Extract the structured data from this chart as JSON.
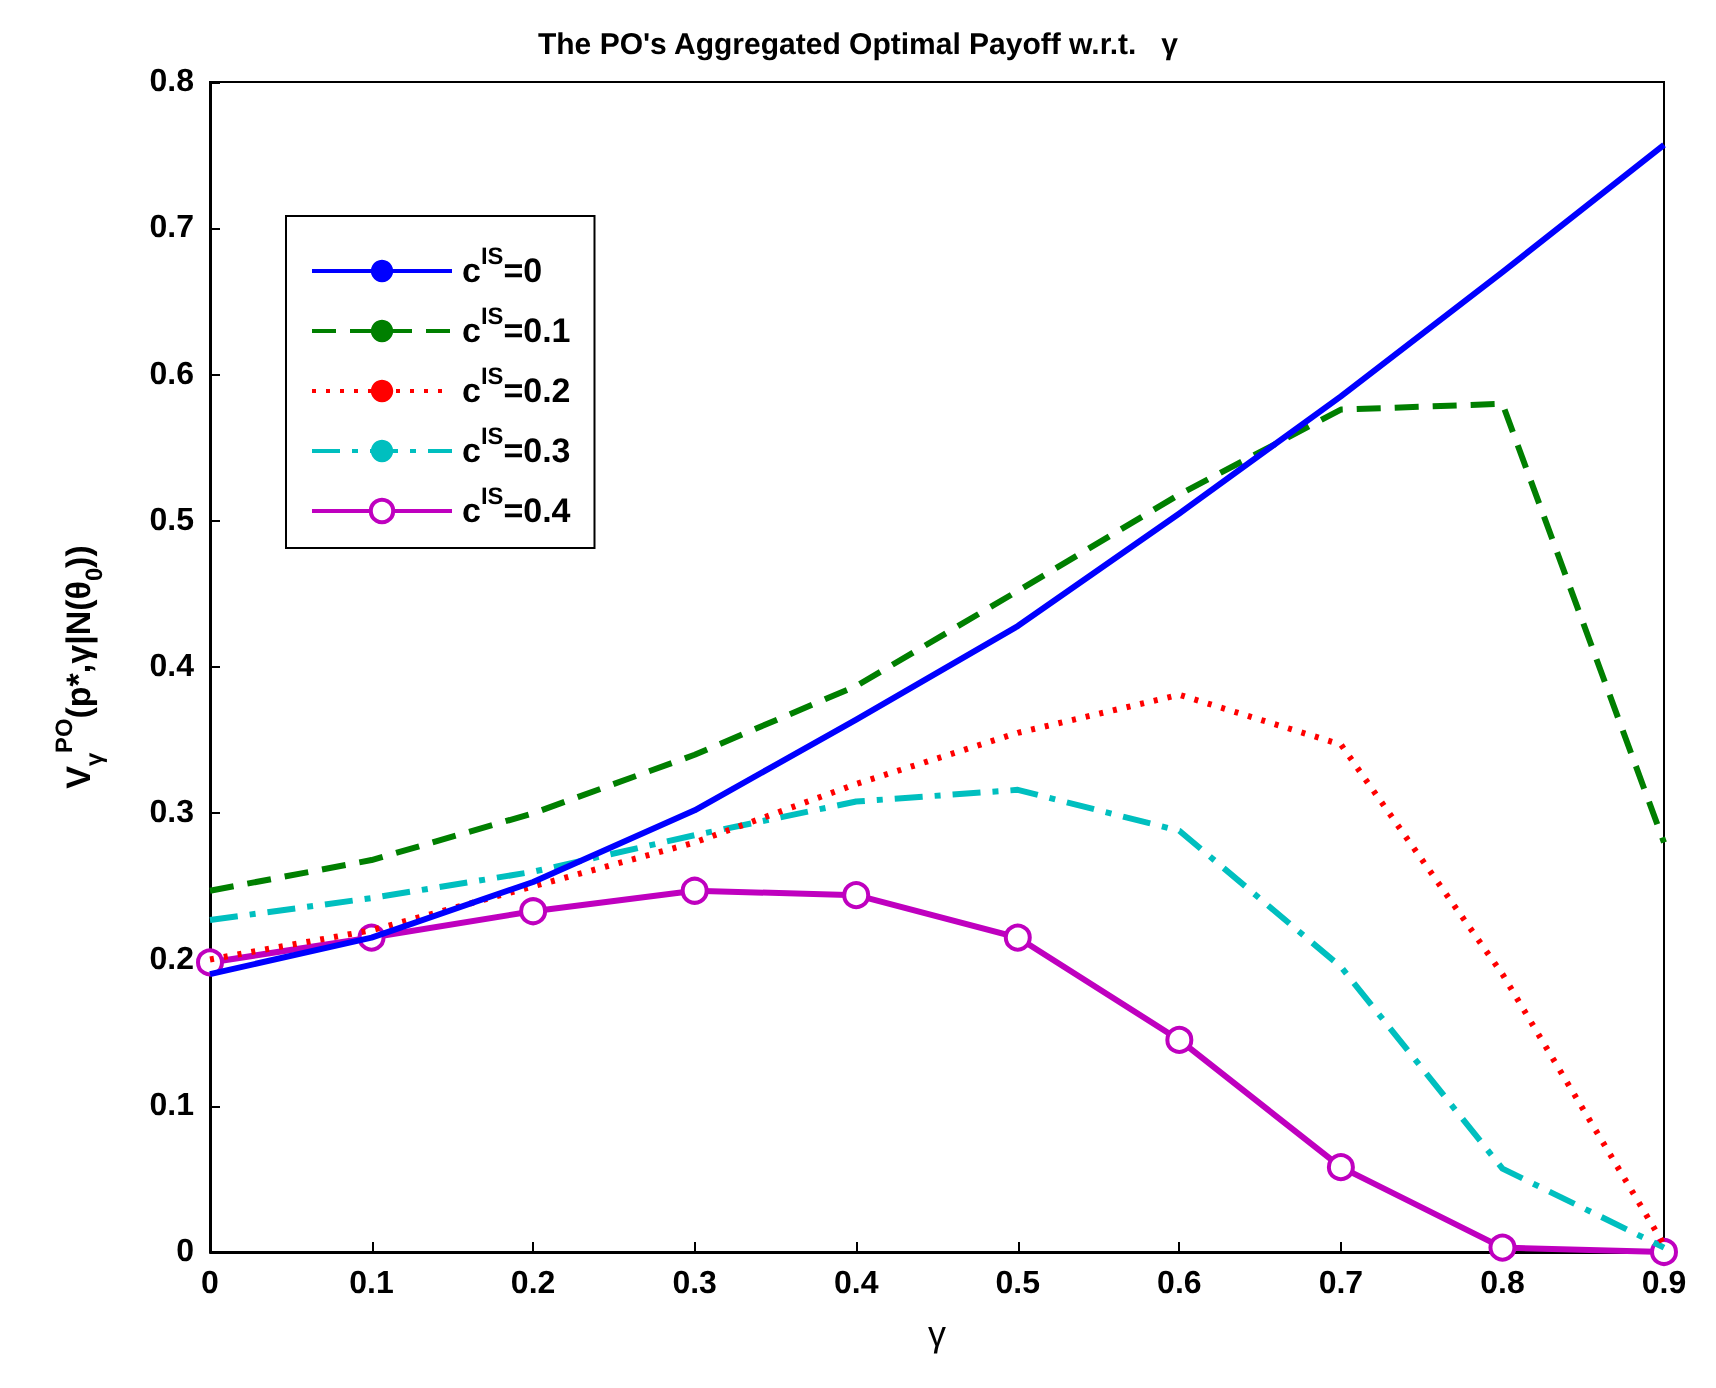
{
  "chart_data": {
    "type": "line",
    "title": "The PO's Aggregated Optimal Payoff w.r.t.   γ",
    "xlabel": "γ",
    "ylabel": "V$_{γ}$$^{PO}$(p*,γ|N(θ$_{0}$))",
    "x": [
      0,
      0.1,
      0.2,
      0.3,
      0.4,
      0.5,
      0.6,
      0.7,
      0.8,
      0.9
    ],
    "xlim": [
      0,
      0.9
    ],
    "xticks": [
      0,
      0.1,
      0.2,
      0.3,
      0.4,
      0.5,
      0.6,
      0.7,
      0.8,
      0.9
    ],
    "ylim": [
      0,
      0.8
    ],
    "yticks": [
      0,
      0.1,
      0.2,
      0.3,
      0.4,
      0.5,
      0.6,
      0.7,
      0.8
    ],
    "grid": false,
    "legend": "top left",
    "marker": "none",
    "series": [
      {
        "name": "c$^{IS}$=0",
        "color": "#0000ff",
        "line_style": "solid",
        "values": [
          0.19,
          0.215,
          0.253,
          0.302,
          0.364,
          0.428,
          0.505,
          0.585,
          0.67,
          0.757
        ]
      },
      {
        "name": "c$^{IS}$=0.1",
        "color": "#007f00",
        "line_style": "dashed",
        "values": [
          0.247,
          0.268,
          0.3,
          0.34,
          0.387,
          0.452,
          0.518,
          0.576,
          0.58,
          0.28
        ]
      },
      {
        "name": "c$^{IS}$=0.2",
        "color": "#ff0000",
        "line_style": "dotted",
        "values": [
          0.2,
          0.22,
          0.25,
          0.28,
          0.32,
          0.355,
          0.381,
          0.347,
          0.19,
          0.005
        ]
      },
      {
        "name": "c$^{IS}$=0.3",
        "color": "#00bfbf",
        "line_style": "dashdot",
        "values": [
          0.227,
          0.242,
          0.26,
          0.285,
          0.308,
          0.316,
          0.288,
          0.195,
          0.057,
          0.003
        ]
      },
      {
        "name": "c$^{IS}$=0.4",
        "color": "#bf00bf",
        "line_style": "solid",
        "marker": "circle",
        "values": [
          0.198,
          0.215,
          0.233,
          0.247,
          0.244,
          0.215,
          0.145,
          0.058,
          0.003,
          0
        ]
      }
    ]
  }
}
